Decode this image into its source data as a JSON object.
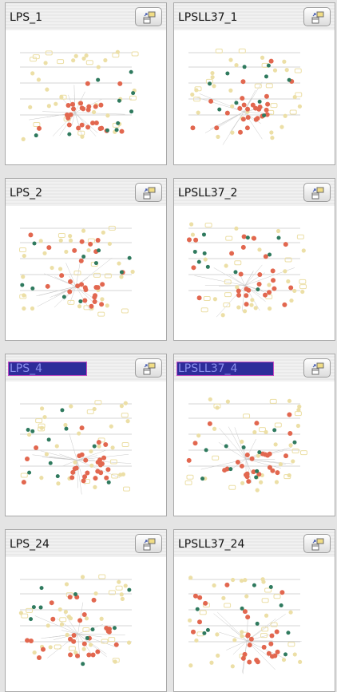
{
  "panels": [
    {
      "title": "LPS_1",
      "selected": false,
      "icon": "window-arrange-icon"
    },
    {
      "title": "LPSLL37_1",
      "selected": false,
      "icon": "window-arrange-icon"
    },
    {
      "title": "LPS_2",
      "selected": false,
      "icon": "window-arrange-icon"
    },
    {
      "title": "LPSLL37_2",
      "selected": false,
      "icon": "window-arrange-icon"
    },
    {
      "title": "LPS_4",
      "selected": true,
      "icon": "window-arrange-icon"
    },
    {
      "title": "LPSLL37_4",
      "selected": true,
      "icon": "window-arrange-icon"
    },
    {
      "title": "LPS_24",
      "selected": false,
      "icon": "window-arrange-icon"
    },
    {
      "title": "LPSLL37_24",
      "selected": false,
      "icon": "window-arrange-icon"
    }
  ],
  "colors": {
    "node_up": "#e2674f",
    "node_down": "#2f7a5e",
    "node_neutral": "#ecdfa6",
    "edge": "#c9c9c9",
    "selection": "#2d2c9a"
  }
}
